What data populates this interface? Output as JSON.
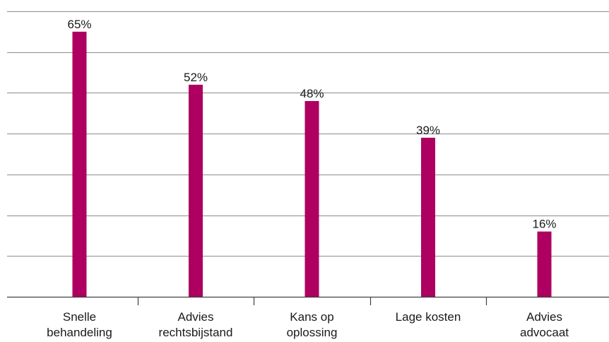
{
  "colors": {
    "bar": "#AD0060",
    "grid": "#8c8c8c",
    "axis": "#404040",
    "text": "#1a1a1a"
  },
  "chart_data": {
    "type": "bar",
    "categories": [
      [
        "Snelle",
        "behandeling"
      ],
      [
        "Advies",
        "rechtsbijstand"
      ],
      [
        "Kans op",
        "oplossing"
      ],
      [
        "Lage kosten"
      ],
      [
        "Advies",
        "advocaat"
      ]
    ],
    "values": [
      65,
      52,
      48,
      39,
      16
    ],
    "value_labels": [
      "65%",
      "52%",
      "48%",
      "39%",
      "16%"
    ],
    "ylim": [
      0,
      70
    ],
    "y_gridlines": [
      0,
      10,
      20,
      30,
      40,
      50,
      60,
      70
    ],
    "grid": true,
    "legend": false
  }
}
